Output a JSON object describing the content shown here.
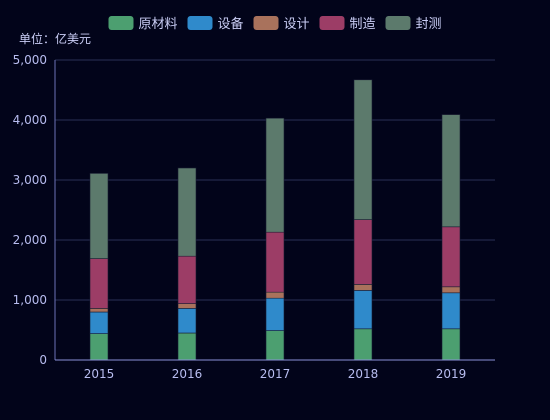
{
  "chart_data": {
    "type": "bar",
    "stacked": true,
    "unit_label": "单位：亿美元",
    "categories": [
      "2015",
      "2016",
      "2017",
      "2018",
      "2019"
    ],
    "series": [
      {
        "name": "原材料",
        "color": "#4c9f70",
        "values": [
          440,
          450,
          490,
          520,
          520
        ]
      },
      {
        "name": "设备",
        "color": "#2f8acb",
        "values": [
          360,
          410,
          540,
          640,
          600
        ]
      },
      {
        "name": "设计",
        "color": "#a9725c",
        "values": [
          60,
          80,
          100,
          100,
          100
        ]
      },
      {
        "name": "制造",
        "color": "#9c3d66",
        "values": [
          830,
          790,
          1000,
          1080,
          1000
        ]
      },
      {
        "name": "封测",
        "color": "#5c7a6c",
        "values": [
          1420,
          1470,
          1900,
          2330,
          1870
        ]
      }
    ],
    "ylim": [
      0,
      5000
    ],
    "yticks": [
      "0",
      "1,000",
      "2,000",
      "3,000",
      "4,000",
      "5,000"
    ],
    "grid": true,
    "legend_position": "top"
  }
}
